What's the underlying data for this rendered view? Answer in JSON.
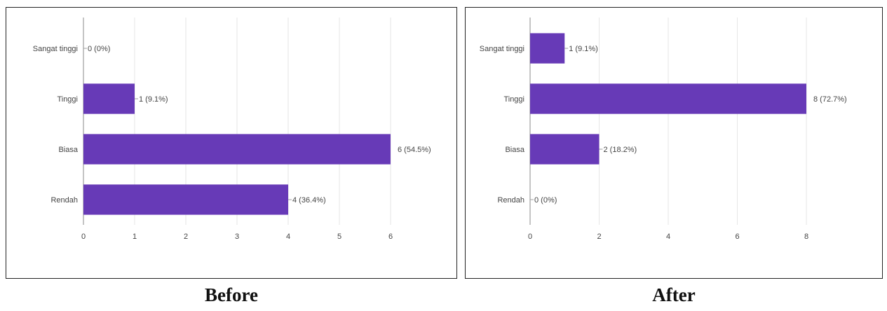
{
  "captions": [
    "Before",
    "After"
  ],
  "colors": {
    "bar": "#673ab7",
    "grid": "#e6e6e6",
    "axis": "#9e9e9e",
    "text": "#444444"
  },
  "chart_data": [
    {
      "type": "bar",
      "orientation": "horizontal",
      "title": "Before",
      "categories": [
        "Sangat tinggi",
        "Tinggi",
        "Biasa",
        "Rendah"
      ],
      "values": [
        0,
        1,
        6,
        4
      ],
      "data_labels": [
        "0 (0%)",
        "1 (9.1%)",
        "6 (54.5%)",
        "4 (36.4%)"
      ],
      "x_ticks": [
        0,
        1,
        2,
        3,
        4,
        5,
        6
      ],
      "xlim": [
        0,
        6
      ],
      "grid": true
    },
    {
      "type": "bar",
      "orientation": "horizontal",
      "title": "After",
      "categories": [
        "Sangat tinggi",
        "Tinggi",
        "Biasa",
        "Rendah"
      ],
      "values": [
        1,
        8,
        2,
        0
      ],
      "data_labels": [
        "1 (9.1%)",
        "8 (72.7%)",
        "2 (18.2%)",
        "0 (0%)"
      ],
      "x_ticks": [
        0,
        2,
        4,
        6,
        8
      ],
      "xlim": [
        0,
        8
      ],
      "grid": true
    }
  ]
}
